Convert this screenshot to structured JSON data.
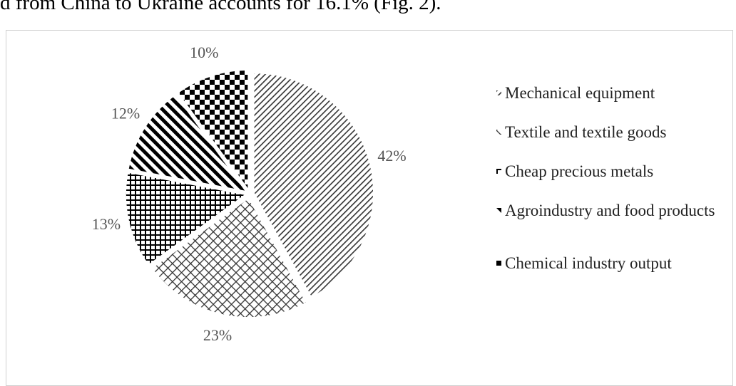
{
  "document_text": "d from China to Ukraine accounts for 16.1% (Fig. 2).",
  "chart_data": {
    "type": "pie",
    "categories": [
      "Mechanical equipment",
      "Textile and textile goods",
      "Cheap precious metals",
      "Agroindustry and food products",
      "Chemical industry output"
    ],
    "values": [
      42,
      23,
      13,
      12,
      10
    ],
    "value_labels": [
      "42%",
      "23%",
      "13%",
      "12%",
      "10%"
    ],
    "color": "#000000"
  }
}
